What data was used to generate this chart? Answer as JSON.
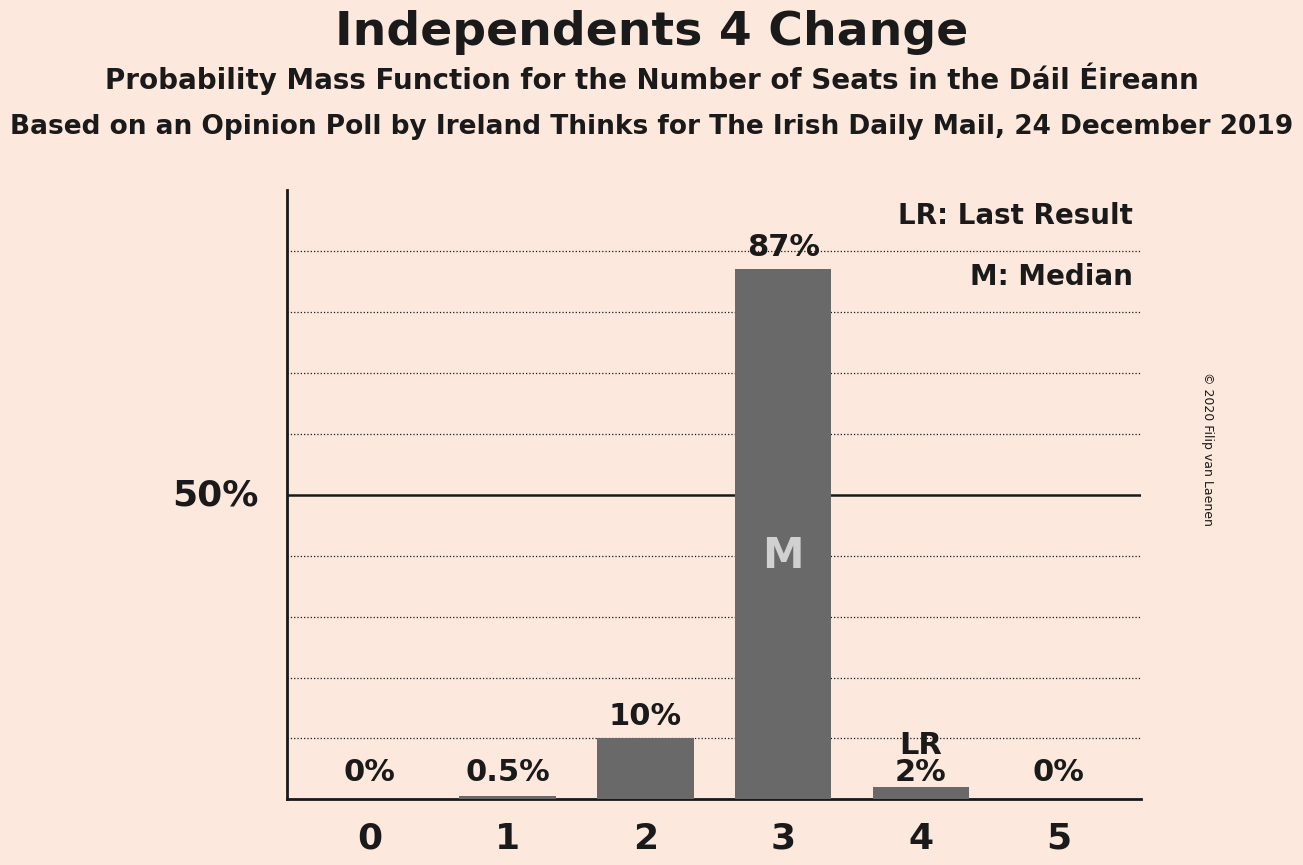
{
  "title": "Independents 4 Change",
  "subtitle1": "Probability Mass Function for the Number of Seats in the Dáil Éireann",
  "subtitle2": "Based on an Opinion Poll by Ireland Thinks for The Irish Daily Mail, 24 December 2019",
  "copyright": "© 2020 Filip van Laenen",
  "categories": [
    0,
    1,
    2,
    3,
    4,
    5
  ],
  "values": [
    0.0,
    0.005,
    0.1,
    0.87,
    0.02,
    0.0
  ],
  "labels": [
    "0%",
    "0.5%",
    "10%",
    "87%",
    "2%",
    "0%"
  ],
  "bar_color": "#696969",
  "background_color": "#fce8dc",
  "median_seat": 3,
  "lr_seat": 4,
  "median_label": "M",
  "lr_label": "LR",
  "legend_lr": "LR: Last Result",
  "legend_m": "M: Median",
  "fifty_pct_label": "50%",
  "ylim": [
    0,
    1.0
  ],
  "grid_values": [
    0.1,
    0.2,
    0.3,
    0.4,
    0.5,
    0.6,
    0.7,
    0.8,
    0.9
  ],
  "solid_line_value": 0.5,
  "title_fontsize": 34,
  "subtitle1_fontsize": 20,
  "subtitle2_fontsize": 19,
  "bar_label_fontsize": 22,
  "tick_fontsize": 26,
  "legend_fontsize": 20,
  "fifty_label_fontsize": 26,
  "median_label_fontsize": 30,
  "lr_label_fontsize": 22,
  "copyright_fontsize": 9
}
